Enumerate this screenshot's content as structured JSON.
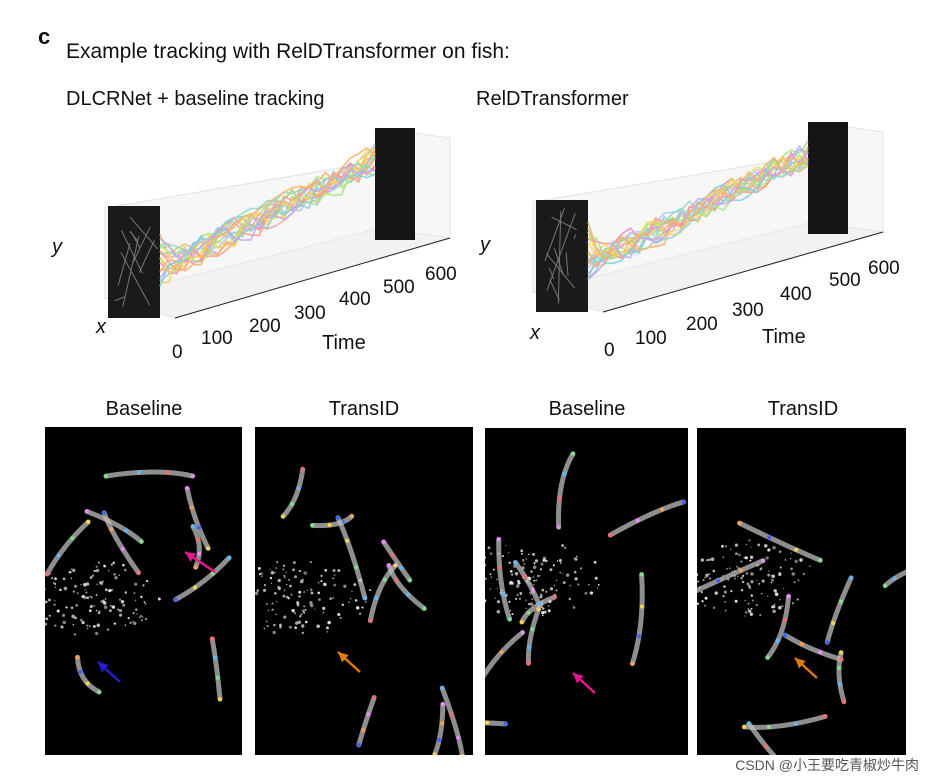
{
  "figure": {
    "panel_letter": "c",
    "heading": "Example tracking with RelDTransformer on fish:"
  },
  "plots": [
    {
      "title": "DLCRNet + baseline tracking",
      "y_label": "y",
      "x_label": "x",
      "time_label": "Time",
      "time_ticks": [
        "0",
        "100",
        "200",
        "300",
        "400",
        "500",
        "600"
      ]
    },
    {
      "title": "RelDTransformer",
      "y_label": "y",
      "x_label": "x",
      "time_label": "Time",
      "time_ticks": [
        "0",
        "100",
        "200",
        "300",
        "400",
        "500",
        "600"
      ]
    }
  ],
  "frames": [
    {
      "label": "Baseline",
      "arrows": [
        {
          "color": "#e8168c"
        },
        {
          "color": "#2020d0"
        }
      ]
    },
    {
      "label": "TransID",
      "arrows": [
        {
          "color": "#e07a10"
        }
      ]
    },
    {
      "label": "Baseline",
      "arrows": [
        {
          "color": "#e8168c"
        }
      ]
    },
    {
      "label": "TransID",
      "arrows": [
        {
          "color": "#e07a10"
        }
      ]
    }
  ],
  "track_colors": [
    "#f4a3a3",
    "#ffd24d",
    "#a6e37a",
    "#7fd0e0",
    "#c9a3f0",
    "#f7b36b",
    "#9fd8a8",
    "#f28cc0",
    "#b3c7f7",
    "#e6e36a",
    "#ff9a7a",
    "#88e0c8"
  ],
  "watermark": "CSDN @小王要吃青椒炒牛肉"
}
